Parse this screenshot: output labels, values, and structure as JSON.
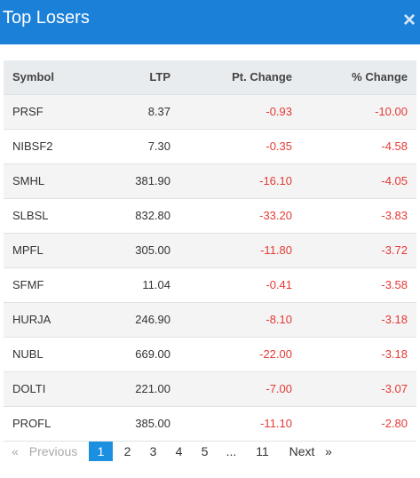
{
  "header": {
    "title": "Top Losers",
    "close": "×"
  },
  "table": {
    "columns": [
      "Symbol",
      "LTP",
      "Pt. Change",
      "% Change"
    ],
    "rows": [
      [
        "PRSF",
        "8.37",
        "-0.93",
        "-10.00"
      ],
      [
        "NIBSF2",
        "7.30",
        "-0.35",
        "-4.58"
      ],
      [
        "SMHL",
        "381.90",
        "-16.10",
        "-4.05"
      ],
      [
        "SLBSL",
        "832.80",
        "-33.20",
        "-3.83"
      ],
      [
        "MPFL",
        "305.00",
        "-11.80",
        "-3.72"
      ],
      [
        "SFMF",
        "11.04",
        "-0.41",
        "-3.58"
      ],
      [
        "HURJA",
        "246.90",
        "-8.10",
        "-3.18"
      ],
      [
        "NUBL",
        "669.00",
        "-22.00",
        "-3.18"
      ],
      [
        "DOLTI",
        "221.00",
        "-7.00",
        "-3.07"
      ],
      [
        "PROFL",
        "385.00",
        "-11.10",
        "-2.80"
      ]
    ]
  },
  "pagination": {
    "first": "«",
    "previous": "Previous",
    "pages": [
      "1",
      "2",
      "3",
      "4",
      "5",
      "...",
      "11"
    ],
    "current": 0,
    "next": "Next",
    "last": "»"
  }
}
